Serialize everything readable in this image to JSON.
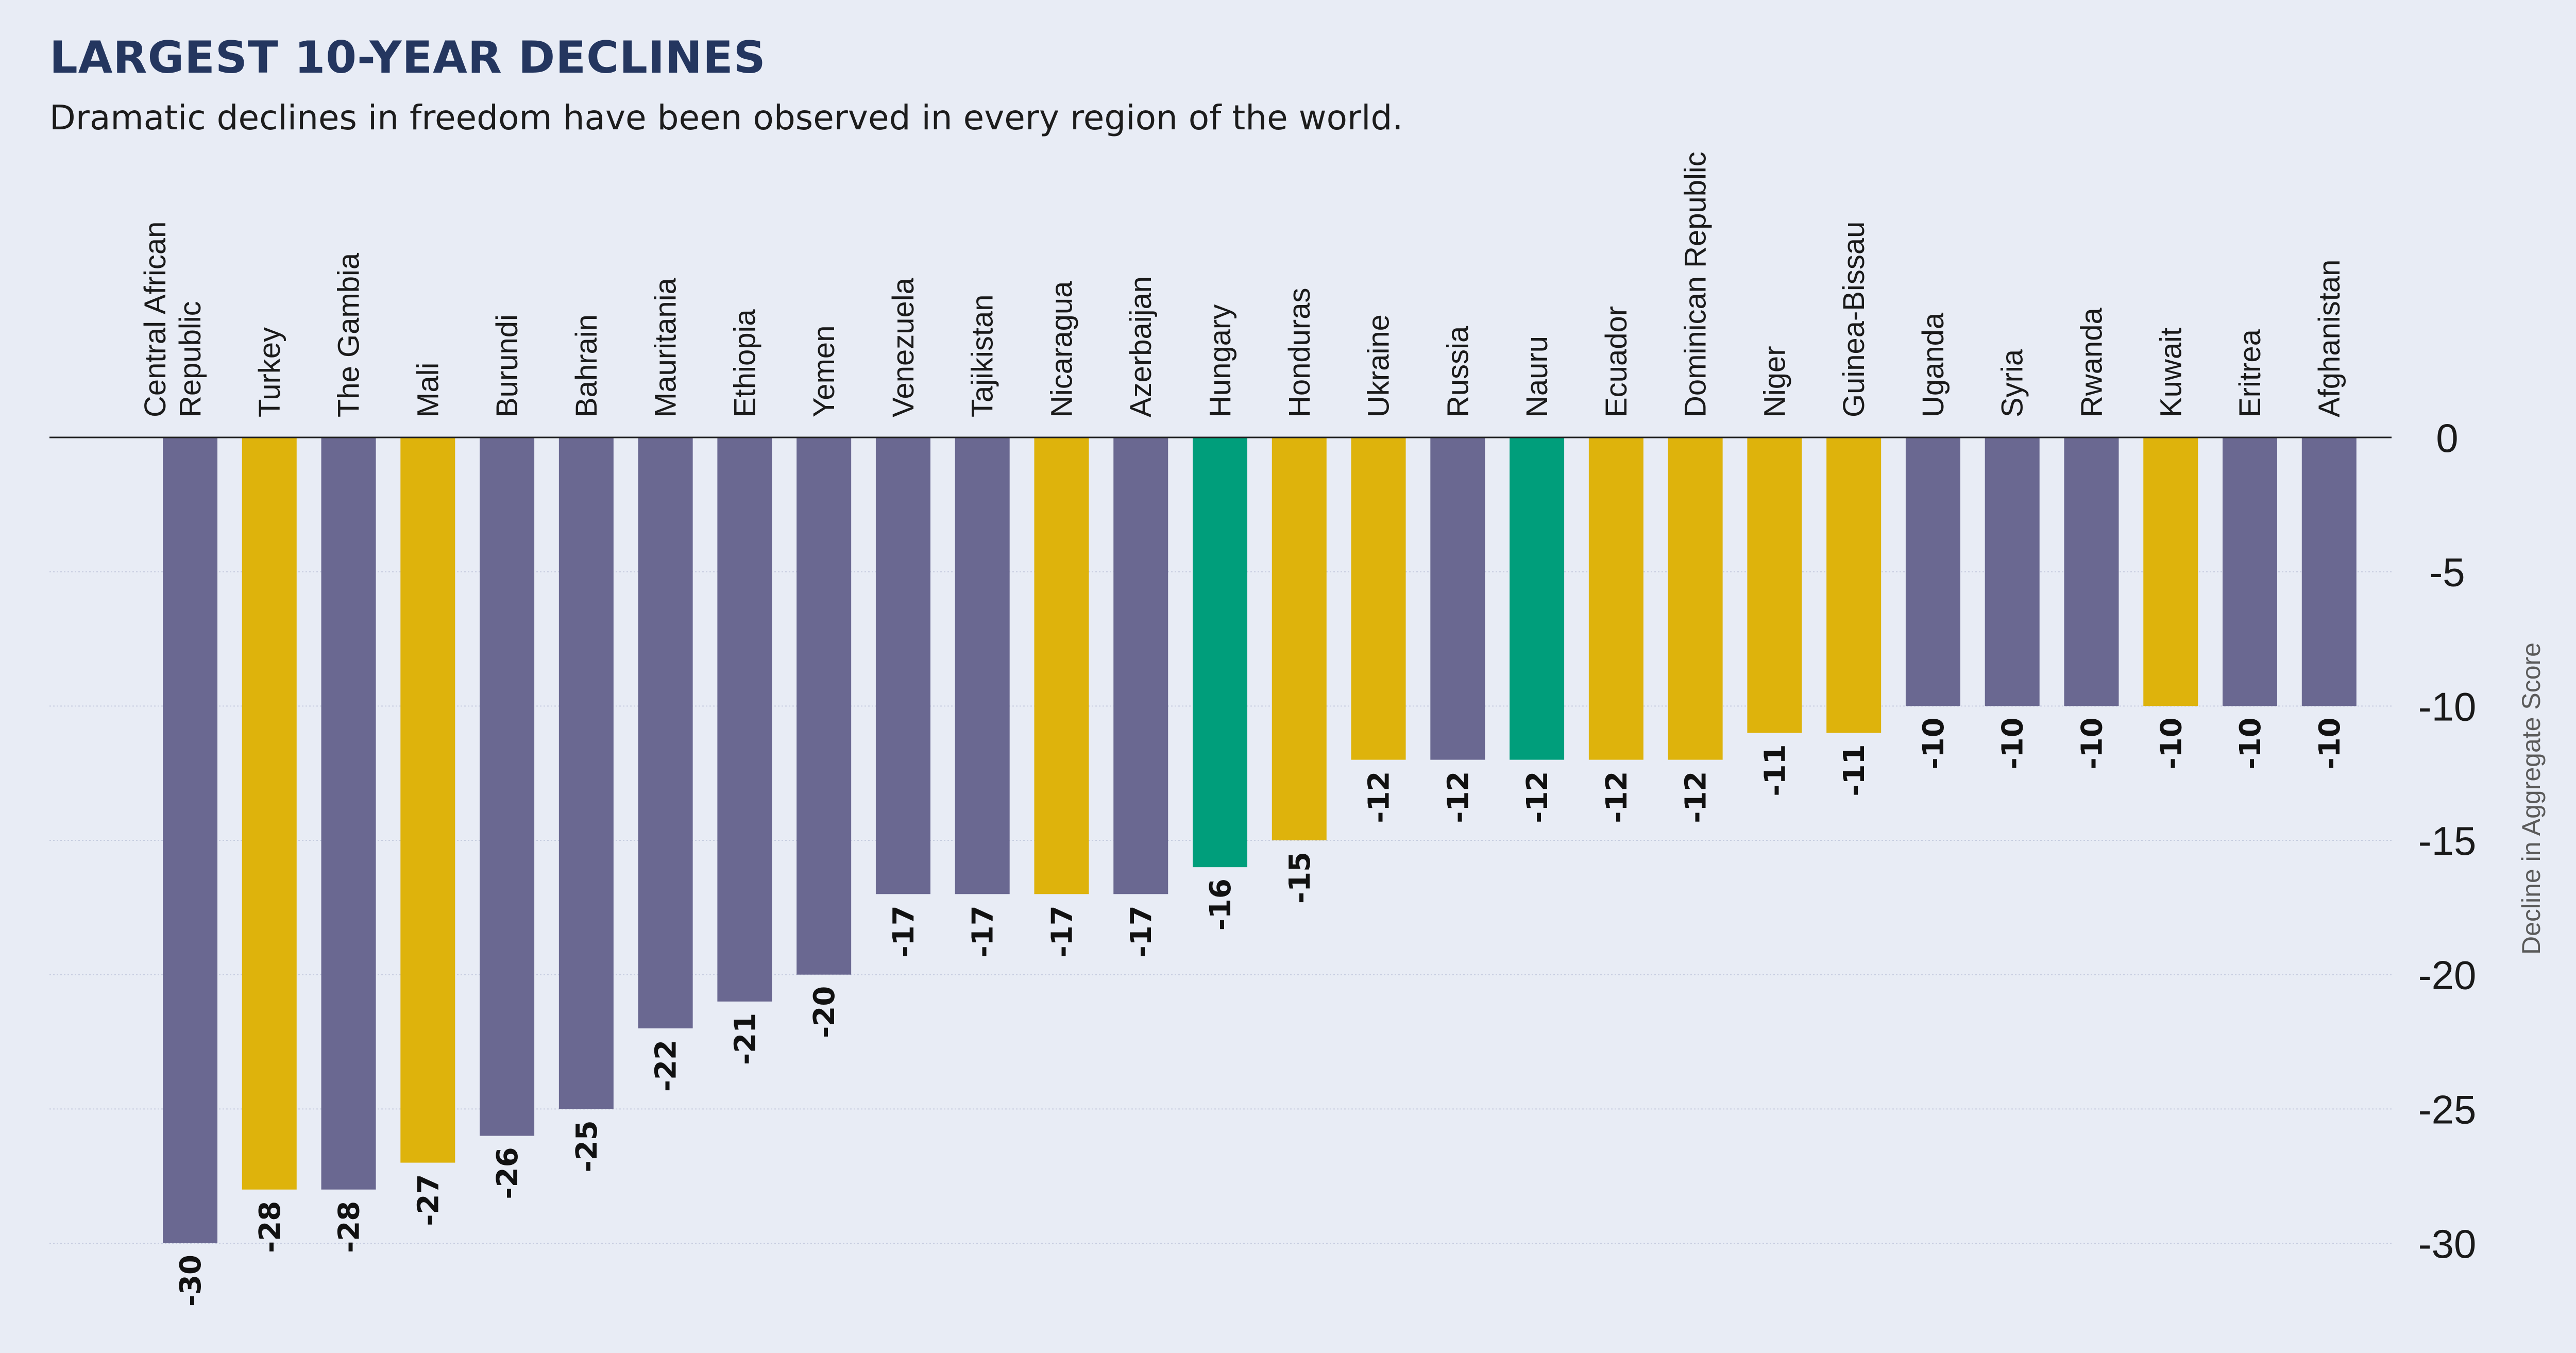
{
  "title": "LARGEST 10-YEAR DECLINES",
  "subtitle": "Dramatic declines in freedom have been observed in every region of the world.",
  "colors": {
    "background": "#e8ecf5",
    "purple": "#6a6891",
    "gold": "#deb30c",
    "green": "#009e7b",
    "title": "#24365f",
    "axis_label": "#5a5a5a",
    "gridline": "#c7cde0"
  },
  "chart_data": {
    "type": "bar",
    "title": "LARGEST 10-YEAR DECLINES",
    "subtitle": "Dramatic declines in freedom have been observed in every region of the world.",
    "xlabel": "",
    "ylabel": "Decline in Aggregate Score",
    "ylim": [
      -30,
      0
    ],
    "yticks": [
      0,
      -5,
      -10,
      -15,
      -20,
      -25,
      -30
    ],
    "grid": true,
    "categories": [
      [
        "Central African",
        "Republic"
      ],
      [
        "Turkey"
      ],
      [
        "The Gambia"
      ],
      [
        "Mali"
      ],
      [
        "Burundi"
      ],
      [
        "Bahrain"
      ],
      [
        "Mauritania"
      ],
      [
        "Ethiopia"
      ],
      [
        "Yemen"
      ],
      [
        "Venezuela"
      ],
      [
        "Tajikistan"
      ],
      [
        "Nicaragua"
      ],
      [
        "Azerbaijan"
      ],
      [
        "Hungary"
      ],
      [
        "Honduras"
      ],
      [
        "Ukraine"
      ],
      [
        "Russia"
      ],
      [
        "Nauru"
      ],
      [
        "Ecuador"
      ],
      [
        "Dominican Republic"
      ],
      [
        "Niger"
      ],
      [
        "Guinea-Bissau"
      ],
      [
        "Uganda"
      ],
      [
        "Syria"
      ],
      [
        "Rwanda"
      ],
      [
        "Kuwait"
      ],
      [
        "Eritrea"
      ],
      [
        "Afghanistan"
      ]
    ],
    "values": [
      -30,
      -28,
      -28,
      -27,
      -26,
      -25,
      -22,
      -21,
      -20,
      -17,
      -17,
      -17,
      -17,
      -16,
      -15,
      -12,
      -12,
      -12,
      -12,
      -12,
      -11,
      -11,
      -10,
      -10,
      -10,
      -10,
      -10,
      -10
    ],
    "bar_colors": [
      "#6a6891",
      "#deb30c",
      "#6a6891",
      "#deb30c",
      "#6a6891",
      "#6a6891",
      "#6a6891",
      "#6a6891",
      "#6a6891",
      "#6a6891",
      "#6a6891",
      "#deb30c",
      "#6a6891",
      "#009e7b",
      "#deb30c",
      "#deb30c",
      "#6a6891",
      "#009e7b",
      "#deb30c",
      "#deb30c",
      "#deb30c",
      "#deb30c",
      "#6a6891",
      "#6a6891",
      "#6a6891",
      "#deb30c",
      "#6a6891",
      "#6a6891"
    ]
  }
}
